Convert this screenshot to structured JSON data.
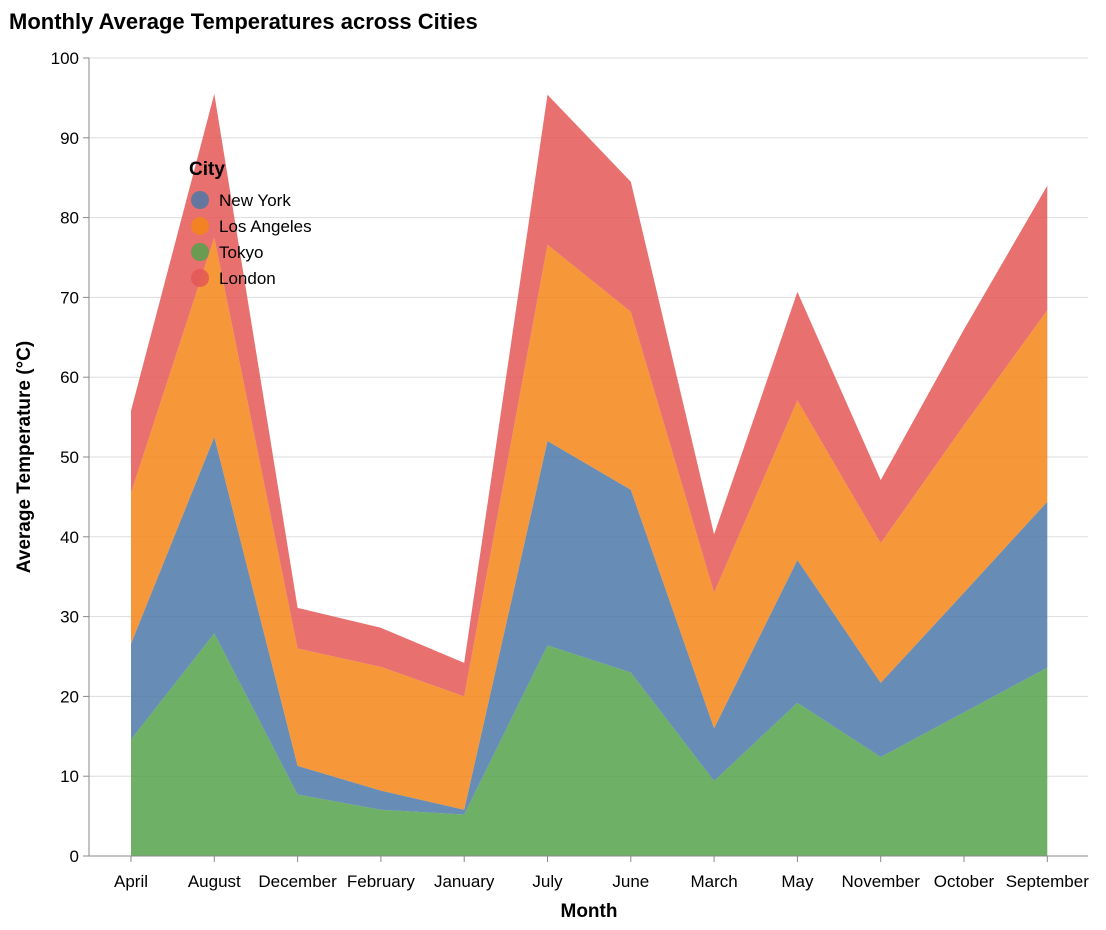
{
  "chart_data": {
    "type": "area",
    "stacked": true,
    "title": "Monthly Average Temperatures across Cities",
    "xlabel": "Month",
    "ylabel": "Average Temperature (°C)",
    "ylim": [
      0,
      100
    ],
    "yticks": [
      0,
      10,
      20,
      30,
      40,
      50,
      60,
      70,
      80,
      90,
      100
    ],
    "grid": true,
    "legend_title": "City",
    "legend_position": "top-left",
    "categories": [
      "April",
      "August",
      "December",
      "February",
      "January",
      "July",
      "June",
      "March",
      "May",
      "November",
      "October",
      "September"
    ],
    "series": [
      {
        "name": "Tokyo",
        "color": "#54a24b",
        "values": [
          14.6,
          27.9,
          7.7,
          5.8,
          5.2,
          26.4,
          23.0,
          9.4,
          19.2,
          12.4,
          18.0,
          23.6
        ]
      },
      {
        "name": "New York",
        "color": "#4c78a8",
        "values": [
          12.0,
          24.6,
          3.6,
          2.4,
          0.6,
          25.6,
          22.9,
          6.6,
          17.9,
          9.3,
          15.0,
          20.8
        ]
      },
      {
        "name": "Los Angeles",
        "color": "#f58518",
        "values": [
          18.9,
          25.0,
          14.7,
          15.5,
          14.2,
          24.6,
          22.3,
          17.0,
          20.0,
          17.5,
          21.0,
          24.0
        ]
      },
      {
        "name": "London",
        "color": "#e45756",
        "values": [
          10.3,
          18.0,
          5.1,
          4.9,
          4.2,
          18.8,
          16.3,
          7.3,
          13.6,
          7.9,
          12.0,
          15.6
        ]
      }
    ],
    "legend_order": [
      "New York",
      "Los Angeles",
      "Tokyo",
      "London"
    ]
  }
}
